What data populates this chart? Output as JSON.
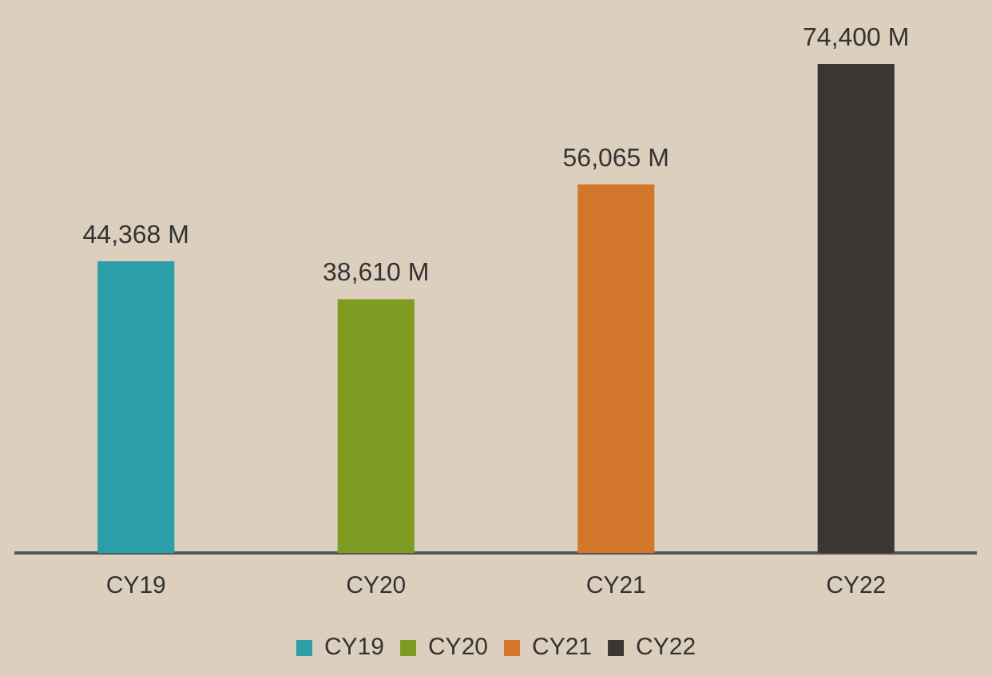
{
  "chart_data": {
    "type": "bar",
    "categories": [
      "CY19",
      "CY20",
      "CY21",
      "CY22"
    ],
    "series": [
      {
        "name": "CY19",
        "color": "#2a9fa8",
        "values": [
          44368,
          null,
          null,
          null
        ],
        "value_labels": [
          "44,368 M",
          null,
          null,
          null
        ]
      },
      {
        "name": "CY20",
        "color": "#7e9c22",
        "values": [
          null,
          38610,
          null,
          null
        ],
        "value_labels": [
          null,
          "38,610 M",
          null,
          null
        ]
      },
      {
        "name": "CY21",
        "color": "#d3762c",
        "values": [
          null,
          null,
          56065,
          null
        ],
        "value_labels": [
          null,
          null,
          "56,065 M",
          null
        ]
      },
      {
        "name": "CY22",
        "color": "#3b3631",
        "values": [
          null,
          null,
          null,
          74400
        ],
        "value_labels": [
          null,
          null,
          null,
          "74,400 M"
        ]
      }
    ],
    "ylim": [
      0,
      74400
    ],
    "grid": false,
    "legend": "bottom"
  }
}
